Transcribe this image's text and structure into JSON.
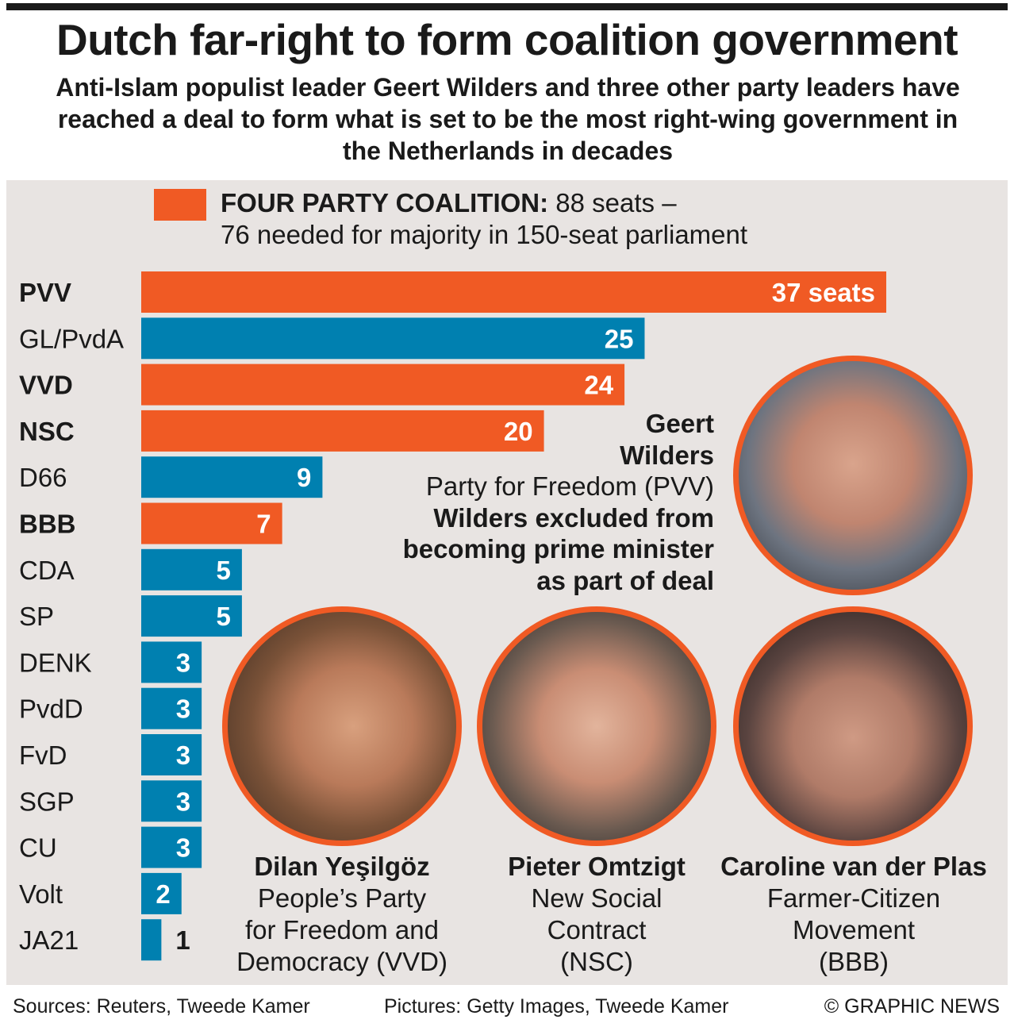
{
  "title": "Dutch far-right to form coalition government",
  "subtitle": "Anti-Islam populist leader Geert Wilders and three other party leaders have reached a deal to form what is set to be the most right-wing government in the Netherlands in decades",
  "legend": {
    "label_bold": "FOUR PARTY COALITION:",
    "label_rest": " 88 seats –",
    "line2": "76 needed for majority in 150-seat parliament",
    "color": "#f05a24"
  },
  "colors": {
    "coalition": "#f05a24",
    "other": "#0080b0",
    "background": "#e8e4e2"
  },
  "chart_data": {
    "type": "bar",
    "orientation": "horizontal",
    "categories": [
      "PVV",
      "GL/PvdA",
      "VVD",
      "NSC",
      "D66",
      "BBB",
      "CDA",
      "SP",
      "DENK",
      "PvdD",
      "FvD",
      "SGP",
      "CU",
      "Volt",
      "JA21"
    ],
    "values": [
      37,
      25,
      24,
      20,
      9,
      7,
      5,
      5,
      3,
      3,
      3,
      3,
      3,
      2,
      1
    ],
    "data_labels": [
      "37 seats",
      "25",
      "24",
      "20",
      "9",
      "7",
      "5",
      "5",
      "3",
      "3",
      "3",
      "3",
      "3",
      "2",
      "1"
    ],
    "coalition": [
      true,
      false,
      true,
      true,
      false,
      true,
      false,
      false,
      false,
      false,
      false,
      false,
      false,
      false,
      false
    ],
    "xlabel": "",
    "ylabel": "",
    "grid": false
  },
  "portraits": {
    "wilders": {
      "name_line1": "Geert",
      "name_line2": "Wilders",
      "party": "Party for Freedom (PVV)",
      "note_lines": [
        "Wilders excluded from",
        "becoming prime minister",
        "as part of deal"
      ]
    },
    "yesilgoz": {
      "name": "Dilan Yeşilgöz",
      "party_lines": [
        "People’s Party",
        "for Freedom and",
        "Democracy (VVD)"
      ]
    },
    "omtzigt": {
      "name": "Pieter Omtzigt",
      "party_lines": [
        "New Social",
        "Contract",
        "(NSC)"
      ]
    },
    "vanderplas": {
      "name": "Caroline van der Plas",
      "party_lines": [
        "Farmer-Citizen",
        "Movement",
        "(BBB)"
      ]
    }
  },
  "footer": {
    "sources": "Sources: Reuters, Tweede Kamer",
    "pictures": "Pictures: Getty Images, Tweede Kamer",
    "credit": "© GRAPHIC NEWS"
  }
}
